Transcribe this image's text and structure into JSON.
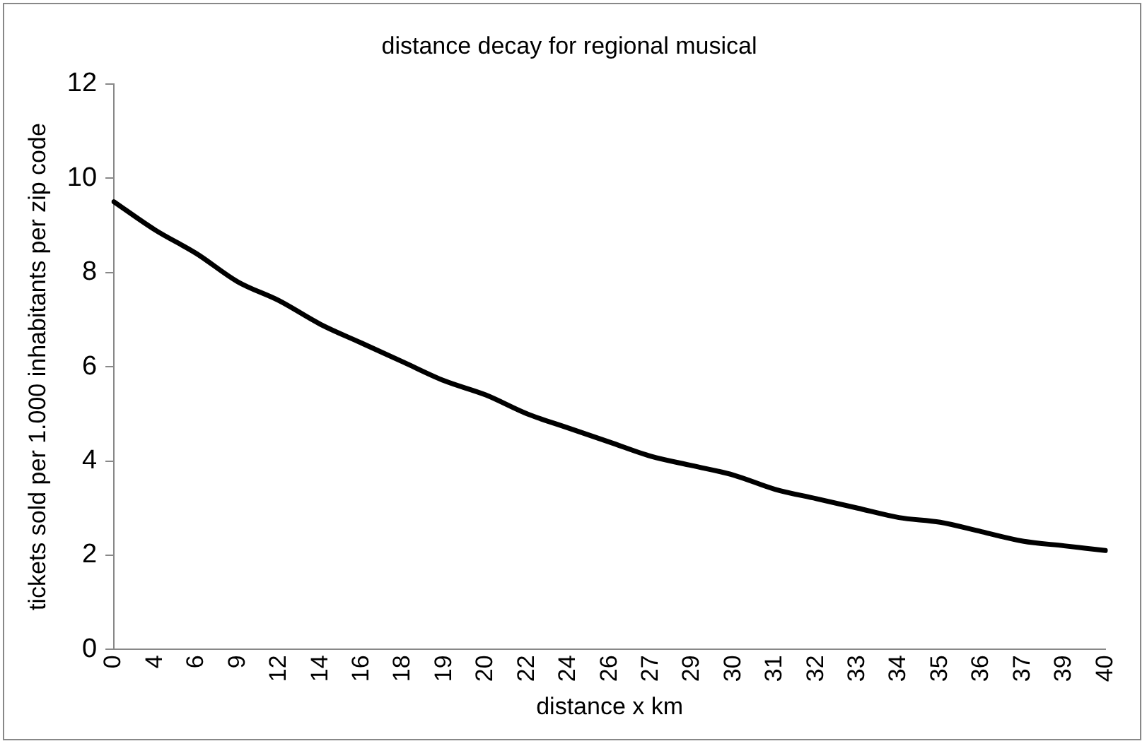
{
  "chart_data": {
    "type": "line",
    "title": "distance decay for regional musical",
    "xlabel": "distance x km",
    "ylabel": "tickets sold per 1.000 inhabitants per zip code",
    "categories": [
      "0",
      "4",
      "6",
      "9",
      "12",
      "14",
      "16",
      "18",
      "19",
      "20",
      "22",
      "24",
      "26",
      "27",
      "29",
      "30",
      "31",
      "32",
      "33",
      "34",
      "35",
      "36",
      "37",
      "39",
      "40"
    ],
    "series": [
      {
        "color": "#000000",
        "values": [
          9.5,
          8.9,
          8.4,
          7.8,
          7.4,
          6.9,
          6.5,
          6.1,
          5.7,
          5.4,
          5.0,
          4.7,
          4.4,
          4.1,
          3.9,
          3.7,
          3.4,
          3.2,
          3.0,
          2.8,
          2.7,
          2.5,
          2.3,
          2.2,
          2.1
        ]
      }
    ],
    "ylim": [
      0,
      12
    ],
    "yticks": [
      0,
      2,
      4,
      6,
      8,
      10,
      12
    ],
    "grid": false,
    "legend": false,
    "marker": "none",
    "line_style": "solid"
  }
}
